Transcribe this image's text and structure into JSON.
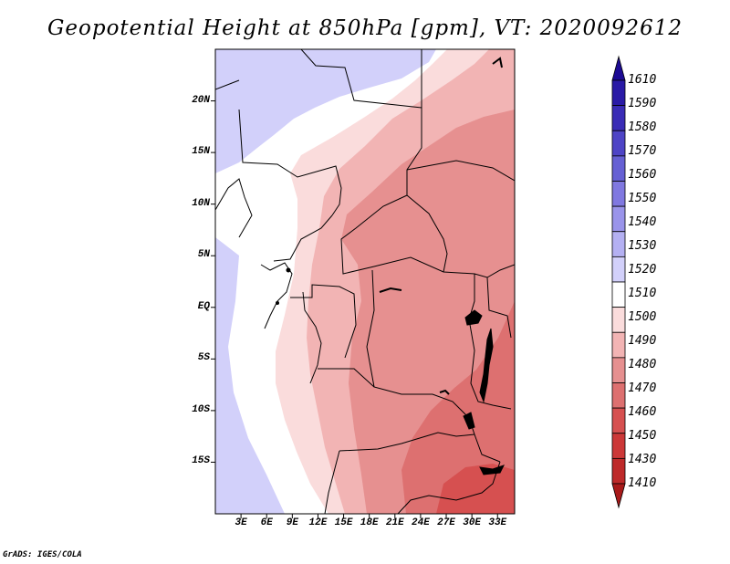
{
  "title": "Geopotential Height at 850hPa [gpm], VT: 2020092612",
  "credit": "GrADS: IGES/COLA",
  "map": {
    "lat_labels": [
      "20N",
      "15N",
      "10N",
      "5N",
      "EQ",
      "5S",
      "10S",
      "15S"
    ],
    "lat_values": [
      20,
      15,
      10,
      5,
      0,
      -5,
      -10,
      -15
    ],
    "lon_labels": [
      "3E",
      "6E",
      "9E",
      "12E",
      "15E",
      "18E",
      "21E",
      "24E",
      "27E",
      "30E",
      "33E"
    ],
    "lon_values": [
      3,
      6,
      9,
      12,
      15,
      18,
      21,
      24,
      27,
      30,
      33
    ],
    "lon_range": [
      0,
      35
    ],
    "lat_range": [
      -20,
      25
    ]
  },
  "colorbar": {
    "labels": [
      "1610",
      "1590",
      "1580",
      "1570",
      "1560",
      "1550",
      "1540",
      "1530",
      "1520",
      "1510",
      "1500",
      "1490",
      "1480",
      "1470",
      "1460",
      "1450",
      "1430",
      "1410"
    ],
    "colors": [
      "#1c0a94",
      "#2a1aa6",
      "#3a2cb6",
      "#4e44c6",
      "#6660d4",
      "#8078e0",
      "#9a94ea",
      "#b4b0f2",
      "#d2d0fa",
      "#ffffff",
      "#fadcdc",
      "#f2b4b4",
      "#e69090",
      "#dd7070",
      "#d65050",
      "#cc3838",
      "#be2a2a",
      "#a81a1a"
    ]
  }
}
